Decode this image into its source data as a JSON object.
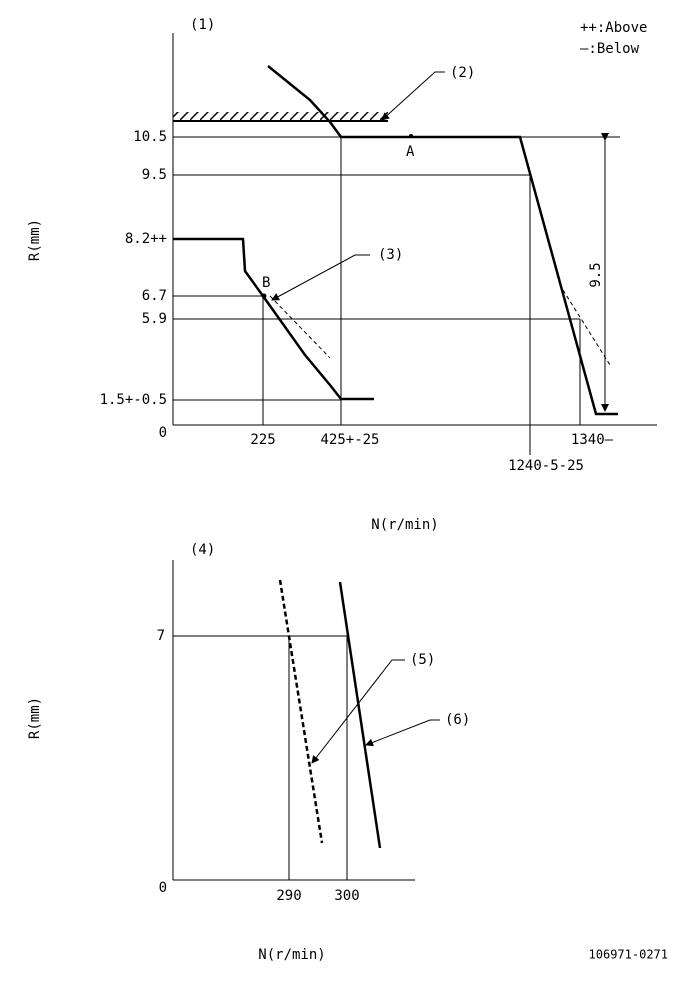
{
  "legend": {
    "above": "++:Above",
    "below": "—:Below"
  },
  "diagram1": {
    "label": "(1)",
    "y_axis_label": "R(mm)",
    "x_axis_label": "N(r/min)",
    "y_labels": [
      "10.5",
      "9.5",
      "8.2++",
      "6.7",
      "5.9",
      "1.5+-0.5",
      "0"
    ],
    "x_labels": [
      "225",
      "425+-25",
      "1240-5-25",
      "1340—"
    ],
    "callouts": [
      "(2)",
      "(3)"
    ],
    "points": [
      "A",
      "B"
    ],
    "dimension": "9.5"
  },
  "diagram2": {
    "label": "(4)",
    "y_axis_label": "R(mm)",
    "x_axis_label": "N(r/min)",
    "y_labels": [
      "7",
      "0"
    ],
    "x_labels": [
      "290",
      "300"
    ],
    "callouts": [
      "(5)",
      "(6)"
    ]
  },
  "code": "106971-0271"
}
